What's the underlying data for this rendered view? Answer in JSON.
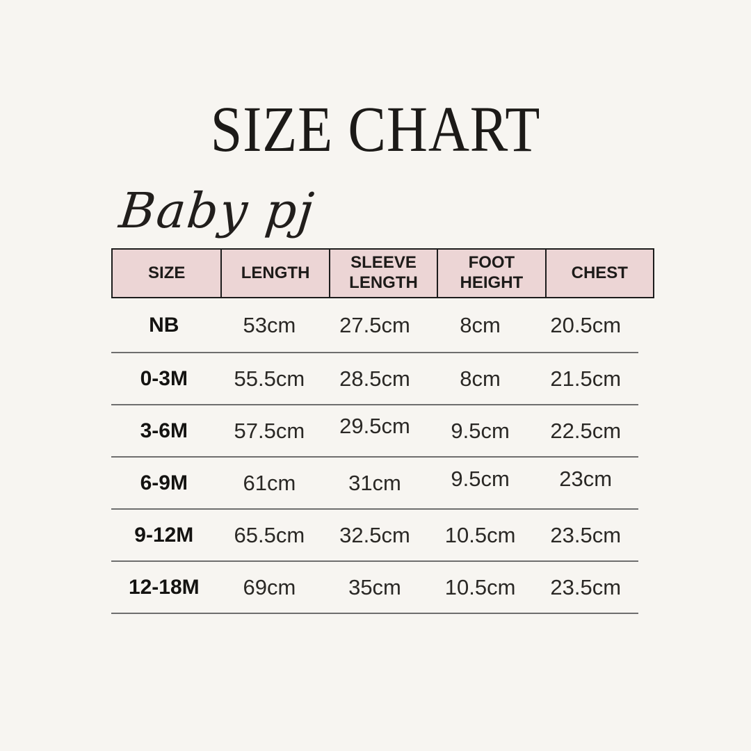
{
  "colors": {
    "background": "#f7f5f1",
    "table_header_bg": "#ecd5d5",
    "table_header_border": "#1c1c1c",
    "row_divider": "#6e6e6e",
    "text": "#1d1b19"
  },
  "chart_data": {
    "type": "table",
    "title": "SIZE CHART",
    "subtitle": "Baby pj",
    "unit": "cm",
    "columns": [
      "SIZE",
      "LENGTH",
      "SLEEVE LENGTH",
      "FOOT HEIGHT",
      "CHEST"
    ],
    "rows": [
      {
        "size": "NB",
        "length": "53cm",
        "sleeve_length": "27.5cm",
        "foot_height": "8cm",
        "chest": "20.5cm"
      },
      {
        "size": "0-3M",
        "length": "55.5cm",
        "sleeve_length": "28.5cm",
        "foot_height": "8cm",
        "chest": "21.5cm"
      },
      {
        "size": "3-6M",
        "length": "57.5cm",
        "sleeve_length": "29.5cm",
        "foot_height": "9.5cm",
        "chest": "22.5cm"
      },
      {
        "size": "6-9M",
        "length": "61cm",
        "sleeve_length": "31cm",
        "foot_height": "9.5cm",
        "chest": "23cm"
      },
      {
        "size": "9-12M",
        "length": "65.5cm",
        "sleeve_length": "32.5cm",
        "foot_height": "10.5cm",
        "chest": "23.5cm"
      },
      {
        "size": "12-18M",
        "length": "69cm",
        "sleeve_length": "35cm",
        "foot_height": "10.5cm",
        "chest": "23.5cm"
      }
    ]
  }
}
